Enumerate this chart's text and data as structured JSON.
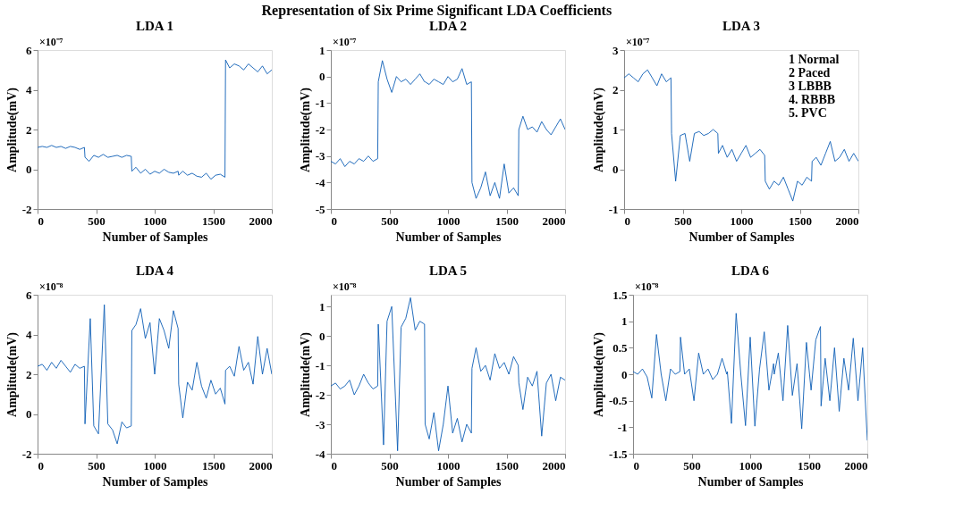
{
  "chart_data": [
    {
      "type": "line",
      "title": "LDA 1",
      "xlabel": "Number of Samples",
      "ylabel": "Amplitude(mV)",
      "annotations": [
        "×10⁻⁷",
        "Representation of Six Prime Significant LDA Coefficients"
      ],
      "xlim": [
        0,
        2000
      ],
      "xticks": [
        0,
        500,
        1000,
        1500,
        2000
      ],
      "ylim": [
        -2,
        6
      ],
      "yticks": [
        -2,
        0,
        2,
        4,
        6
      ],
      "marker": "none",
      "line_style": "solid",
      "x": [
        0,
        40,
        80,
        120,
        160,
        200,
        240,
        280,
        320,
        360,
        400,
        405,
        440,
        480,
        520,
        560,
        600,
        640,
        680,
        720,
        760,
        800,
        805,
        840,
        880,
        920,
        960,
        1000,
        1040,
        1080,
        1120,
        1160,
        1200,
        1205,
        1240,
        1280,
        1320,
        1360,
        1400,
        1440,
        1480,
        1520,
        1560,
        1600,
        1605,
        1640,
        1680,
        1720,
        1760,
        1800,
        1840,
        1880,
        1920,
        1960,
        2000
      ],
      "series": [
        {
          "color": "#0c5db5",
          "values": [
            1.1,
            1.15,
            1.1,
            1.2,
            1.1,
            1.15,
            1.05,
            1.15,
            1.1,
            1.0,
            1.1,
            0.6,
            0.4,
            0.7,
            0.6,
            0.75,
            0.6,
            0.65,
            0.7,
            0.6,
            0.7,
            0.65,
            -0.1,
            0.1,
            -0.2,
            0.0,
            -0.25,
            -0.1,
            -0.2,
            0.0,
            -0.15,
            -0.2,
            -0.1,
            -0.3,
            -0.1,
            -0.3,
            -0.2,
            -0.35,
            -0.4,
            -0.2,
            -0.5,
            -0.3,
            -0.25,
            -0.4,
            5.5,
            5.1,
            5.3,
            5.2,
            5.0,
            5.3,
            5.1,
            4.9,
            5.2,
            4.8,
            5.0
          ]
        }
      ]
    },
    {
      "type": "line",
      "title": "LDA 2",
      "xlabel": "Number of Samples",
      "ylabel": "Amplitude(mV)",
      "annotations": [
        "×10⁻⁷"
      ],
      "xlim": [
        0,
        2000
      ],
      "xticks": [
        0,
        500,
        1000,
        1500,
        2000
      ],
      "ylim": [
        -5,
        1
      ],
      "yticks": [
        -5,
        -4,
        -3,
        -2,
        -1,
        0,
        1
      ],
      "marker": "none",
      "line_style": "solid",
      "x": [
        0,
        40,
        80,
        120,
        160,
        200,
        240,
        280,
        320,
        360,
        400,
        405,
        440,
        480,
        520,
        560,
        600,
        640,
        680,
        720,
        760,
        800,
        805,
        840,
        880,
        920,
        960,
        1000,
        1040,
        1080,
        1120,
        1160,
        1200,
        1205,
        1240,
        1280,
        1320,
        1360,
        1400,
        1440,
        1480,
        1520,
        1560,
        1600,
        1605,
        1640,
        1680,
        1720,
        1760,
        1800,
        1840,
        1880,
        1920,
        1960,
        2000
      ],
      "series": [
        {
          "color": "#0c5db5",
          "values": [
            -3.2,
            -3.3,
            -3.1,
            -3.4,
            -3.2,
            -3.3,
            -3.1,
            -3.2,
            -3.0,
            -3.2,
            -3.1,
            -0.2,
            0.6,
            -0.1,
            -0.6,
            0.0,
            -0.2,
            -0.1,
            -0.3,
            -0.1,
            0.1,
            -0.2,
            -0.2,
            -0.3,
            -0.1,
            -0.2,
            -0.3,
            0.0,
            -0.2,
            -0.1,
            0.3,
            -0.3,
            -0.2,
            -4.0,
            -4.6,
            -4.2,
            -3.6,
            -4.5,
            -4.0,
            -4.6,
            -3.3,
            -4.4,
            -4.2,
            -4.5,
            -2.0,
            -1.5,
            -2.0,
            -1.9,
            -2.1,
            -1.7,
            -2.0,
            -2.2,
            -1.9,
            -1.6,
            -2.0
          ]
        }
      ]
    },
    {
      "type": "line",
      "title": "LDA 3",
      "xlabel": "Number of Samples",
      "ylabel": "Amplitude(mV)",
      "annotations": [
        "×10⁻⁷",
        "1  Normal",
        "2  Paced",
        "3  LBBB",
        "4. RBBB",
        "5. PVC"
      ],
      "xlim": [
        0,
        2000
      ],
      "xticks": [
        0,
        500,
        1000,
        1500,
        2000
      ],
      "ylim": [
        -1,
        3
      ],
      "yticks": [
        -1,
        0,
        1,
        2,
        3
      ],
      "marker": "none",
      "line_style": "solid",
      "x": [
        0,
        40,
        80,
        120,
        160,
        200,
        240,
        280,
        320,
        360,
        400,
        405,
        440,
        480,
        520,
        560,
        600,
        640,
        680,
        720,
        760,
        800,
        805,
        840,
        880,
        920,
        960,
        1000,
        1040,
        1080,
        1120,
        1160,
        1200,
        1205,
        1240,
        1280,
        1320,
        1360,
        1400,
        1440,
        1480,
        1520,
        1560,
        1600,
        1605,
        1640,
        1680,
        1720,
        1760,
        1800,
        1840,
        1880,
        1920,
        1960,
        2000
      ],
      "series": [
        {
          "color": "#0c5db5",
          "values": [
            2.3,
            2.4,
            2.3,
            2.2,
            2.4,
            2.5,
            2.3,
            2.1,
            2.4,
            2.2,
            2.3,
            0.9,
            -0.3,
            0.85,
            0.9,
            0.2,
            0.9,
            0.95,
            0.85,
            0.9,
            1.0,
            0.9,
            0.4,
            0.6,
            0.3,
            0.5,
            0.2,
            0.4,
            0.6,
            0.3,
            0.4,
            0.5,
            0.35,
            -0.3,
            -0.5,
            -0.3,
            -0.4,
            -0.2,
            -0.5,
            -0.8,
            -0.3,
            -0.4,
            -0.2,
            -0.3,
            0.2,
            0.3,
            0.1,
            0.4,
            0.7,
            0.2,
            0.3,
            0.5,
            0.2,
            0.4,
            0.2
          ]
        }
      ]
    },
    {
      "type": "line",
      "title": "LDA 4",
      "xlabel": "Number of Samples",
      "ylabel": "Amplitude(mV)",
      "annotations": [
        "×10⁻⁸"
      ],
      "xlim": [
        0,
        2000
      ],
      "xticks": [
        0,
        500,
        1000,
        1500,
        2000
      ],
      "ylim": [
        -2,
        6
      ],
      "yticks": [
        -2,
        0,
        2,
        4,
        6
      ],
      "marker": "none",
      "line_style": "solid",
      "x": [
        0,
        40,
        80,
        120,
        160,
        200,
        240,
        280,
        320,
        360,
        400,
        405,
        450,
        480,
        520,
        570,
        600,
        640,
        680,
        720,
        760,
        800,
        805,
        840,
        880,
        920,
        960,
        1000,
        1040,
        1080,
        1120,
        1160,
        1200,
        1205,
        1240,
        1280,
        1320,
        1360,
        1400,
        1440,
        1480,
        1520,
        1560,
        1600,
        1605,
        1640,
        1680,
        1720,
        1760,
        1800,
        1840,
        1880,
        1920,
        1960,
        2000
      ],
      "series": [
        {
          "color": "#0c5db5",
          "values": [
            2.4,
            2.5,
            2.2,
            2.6,
            2.3,
            2.7,
            2.4,
            2.1,
            2.5,
            2.3,
            2.4,
            -0.5,
            4.8,
            -0.6,
            -1.0,
            5.5,
            -0.5,
            -0.8,
            -1.5,
            -0.4,
            -0.7,
            -0.6,
            4.2,
            4.5,
            5.3,
            3.8,
            4.6,
            2.0,
            4.8,
            4.2,
            3.3,
            5.2,
            4.3,
            1.5,
            -0.2,
            1.6,
            1.2,
            2.6,
            1.4,
            0.8,
            1.7,
            1.0,
            1.3,
            0.5,
            2.2,
            2.4,
            1.9,
            3.4,
            2.2,
            2.6,
            1.5,
            3.9,
            2.0,
            3.3,
            2.0
          ]
        }
      ]
    },
    {
      "type": "line",
      "title": "LDA 5",
      "xlabel": "Number of Samples",
      "ylabel": "Amplitude(mV)",
      "annotations": [
        "×10⁻⁸"
      ],
      "xlim": [
        0,
        2000
      ],
      "xticks": [
        0,
        500,
        1000,
        1500,
        2000
      ],
      "ylim": [
        -4,
        1.4
      ],
      "yticks": [
        -4,
        -3,
        -2,
        -1,
        0,
        1
      ],
      "marker": "none",
      "line_style": "solid",
      "x": [
        0,
        40,
        80,
        120,
        160,
        200,
        240,
        280,
        320,
        360,
        400,
        405,
        450,
        480,
        520,
        570,
        600,
        640,
        680,
        720,
        760,
        800,
        805,
        840,
        880,
        920,
        960,
        1000,
        1040,
        1080,
        1120,
        1160,
        1200,
        1205,
        1240,
        1280,
        1320,
        1360,
        1400,
        1440,
        1480,
        1520,
        1560,
        1600,
        1605,
        1640,
        1680,
        1720,
        1760,
        1800,
        1840,
        1880,
        1920,
        1960,
        2000
      ],
      "series": [
        {
          "color": "#0c5db5",
          "values": [
            -1.7,
            -1.6,
            -1.8,
            -1.7,
            -1.5,
            -2.0,
            -1.7,
            -1.3,
            -1.6,
            -1.8,
            -1.7,
            0.4,
            -3.7,
            0.5,
            1.0,
            -3.9,
            0.3,
            0.6,
            1.3,
            0.2,
            0.5,
            0.4,
            -3.0,
            -3.5,
            -2.6,
            -3.9,
            -3.0,
            -1.7,
            -3.3,
            -2.8,
            -3.6,
            -3.0,
            -3.3,
            -1.1,
            -0.4,
            -1.2,
            -1.0,
            -1.5,
            -0.6,
            -1.1,
            -0.9,
            -1.3,
            -0.7,
            -1.0,
            -1.6,
            -2.5,
            -1.4,
            -1.7,
            -1.2,
            -3.4,
            -1.6,
            -1.3,
            -2.2,
            -1.4,
            -1.5
          ]
        }
      ]
    },
    {
      "type": "line",
      "title": "LDA 6",
      "xlabel": "Number of Samples",
      "ylabel": "Amplitude(mV)",
      "annotations": [
        "×10⁻⁸"
      ],
      "xlim": [
        0,
        2000
      ],
      "xticks": [
        0,
        500,
        1000,
        1500,
        2000
      ],
      "ylim": [
        -1.5,
        1.5
      ],
      "yticks": [
        -1.5,
        -1,
        -0.5,
        0,
        0.5,
        1,
        1.5
      ],
      "marker": "none",
      "line_style": "solid",
      "x": [
        0,
        40,
        80,
        120,
        160,
        200,
        240,
        280,
        320,
        360,
        400,
        405,
        440,
        480,
        520,
        560,
        600,
        640,
        680,
        720,
        760,
        800,
        805,
        840,
        880,
        920,
        960,
        1000,
        1040,
        1080,
        1120,
        1160,
        1200,
        1205,
        1240,
        1280,
        1320,
        1360,
        1400,
        1440,
        1480,
        1520,
        1560,
        1600,
        1605,
        1640,
        1680,
        1720,
        1760,
        1800,
        1840,
        1880,
        1920,
        1960,
        2000
      ],
      "series": [
        {
          "color": "#0c5db5",
          "values": [
            0.05,
            0.0,
            0.1,
            -0.05,
            -0.45,
            0.75,
            0.0,
            -0.5,
            0.1,
            0.0,
            0.05,
            0.7,
            0.0,
            0.1,
            -0.5,
            0.4,
            0.0,
            0.1,
            -0.1,
            0.0,
            0.3,
            0.0,
            0.05,
            -0.93,
            1.15,
            0.0,
            -0.97,
            0.7,
            -0.98,
            0.1,
            0.8,
            -0.3,
            0.2,
            0.0,
            0.4,
            -0.5,
            0.92,
            -0.4,
            0.2,
            -1.03,
            0.6,
            -0.3,
            0.65,
            0.9,
            -0.6,
            0.3,
            -0.5,
            0.5,
            -0.7,
            0.3,
            -0.3,
            0.68,
            -0.5,
            0.5,
            -1.25
          ]
        }
      ]
    }
  ]
}
